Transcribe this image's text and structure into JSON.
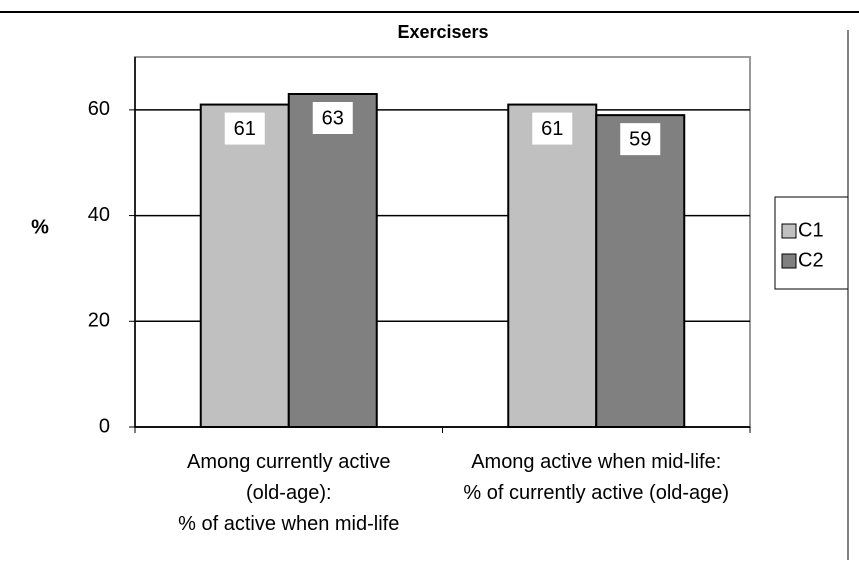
{
  "chart_data": {
    "type": "bar",
    "title": "Exercisers",
    "y_label": "%",
    "categories": [
      "Among currently active\n(old-age):\n% of active when mid-life",
      "Among active when mid-life:\n% of currently active (old-age)"
    ],
    "series": [
      {
        "name": "C1",
        "color": "#c0c0c0",
        "values": [
          61,
          61
        ]
      },
      {
        "name": "C2",
        "color": "#808080",
        "values": [
          63,
          59
        ]
      }
    ],
    "ylim": [
      0,
      70
    ],
    "yticks": [
      0,
      20,
      40,
      60
    ],
    "grid": true,
    "legend": "right"
  }
}
